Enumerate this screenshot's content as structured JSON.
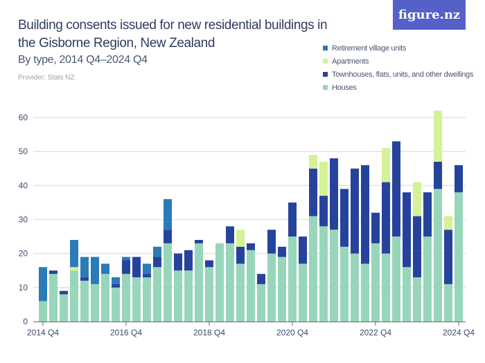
{
  "header": {
    "title": "Building consents issued for new residential buildings in the Gisborne Region, New Zealand",
    "subtitle": "By type, 2014 Q4–2024 Q4",
    "provider": "Provider: Stats NZ",
    "logo": "figure.nz"
  },
  "chart_data": {
    "type": "bar",
    "stacked": true,
    "title": "Building consents issued for new residential buildings in the Gisborne Region, New Zealand",
    "subtitle": "By type, 2014 Q4–2024 Q4",
    "xlabel": "",
    "ylabel": "",
    "ylim": [
      0,
      60
    ],
    "yticks": [
      0,
      10,
      20,
      30,
      40,
      50,
      60
    ],
    "grid": true,
    "legend_position": "top-right",
    "xtick_labels": [
      {
        "index": 0,
        "label": "2014 Q4"
      },
      {
        "index": 8,
        "label": "2016 Q4"
      },
      {
        "index": 16,
        "label": "2018 Q4"
      },
      {
        "index": 24,
        "label": "2020 Q4"
      },
      {
        "index": 32,
        "label": "2022 Q4"
      },
      {
        "index": 40,
        "label": "2024 Q4"
      }
    ],
    "categories": [
      "2014 Q4",
      "2015 Q1",
      "2015 Q2",
      "2015 Q3",
      "2015 Q4",
      "2016 Q1",
      "2016 Q2",
      "2016 Q3",
      "2016 Q4",
      "2017 Q1",
      "2017 Q2",
      "2017 Q3",
      "2017 Q4",
      "2018 Q1",
      "2018 Q2",
      "2018 Q3",
      "2018 Q4",
      "2019 Q1",
      "2019 Q2",
      "2019 Q3",
      "2019 Q4",
      "2020 Q1",
      "2020 Q2",
      "2020 Q3",
      "2020 Q4",
      "2021 Q1",
      "2021 Q2",
      "2021 Q3",
      "2021 Q4",
      "2022 Q1",
      "2022 Q2",
      "2022 Q3",
      "2022 Q4",
      "2023 Q1",
      "2023 Q2",
      "2023 Q3",
      "2023 Q4",
      "2024 Q1",
      "2024 Q2",
      "2024 Q3",
      "2024 Q4"
    ],
    "series": [
      {
        "name": "Houses",
        "color": "#98d6bb",
        "values": [
          6,
          14,
          8,
          15,
          12,
          11,
          14,
          10,
          14,
          13,
          13,
          16,
          23,
          15,
          15,
          23,
          16,
          23,
          23,
          17,
          21,
          11,
          20,
          19,
          25,
          17,
          31,
          28,
          27,
          22,
          20,
          17,
          23,
          20,
          25,
          16,
          13,
          25,
          39,
          11,
          38
        ]
      },
      {
        "name": "Townhouses, flats, units, and other dwellings",
        "color": "#26439c",
        "values": [
          0,
          1,
          1,
          0,
          1,
          0,
          0,
          1,
          4,
          6,
          1,
          3,
          4,
          5,
          6,
          1,
          2,
          0,
          5,
          5,
          2,
          3,
          7,
          3,
          10,
          8,
          14,
          9,
          21,
          17,
          25,
          29,
          9,
          21,
          28,
          22,
          18,
          13,
          8,
          16,
          8
        ]
      },
      {
        "name": "Apartments",
        "color": "#d4f296",
        "values": [
          0,
          0,
          0,
          1,
          0,
          0,
          0,
          0,
          0,
          0,
          0,
          0,
          0,
          0,
          0,
          0,
          0,
          0,
          0,
          5,
          0,
          0,
          0,
          0,
          0,
          0,
          4,
          10,
          0,
          0,
          0,
          0,
          0,
          10,
          0,
          0,
          10,
          0,
          15,
          4,
          0
        ]
      },
      {
        "name": "Retirement village units",
        "color": "#2a7bb8",
        "values": [
          10,
          0,
          0,
          8,
          6,
          8,
          3,
          2,
          1,
          0,
          3,
          3,
          9,
          0,
          0,
          0,
          0,
          0,
          0,
          0,
          0,
          0,
          0,
          0,
          0,
          0,
          0,
          0,
          0,
          0,
          0,
          0,
          0,
          0,
          0,
          0,
          0,
          0,
          0,
          0,
          0
        ]
      }
    ],
    "legend": [
      "Retirement village units",
      "Apartments",
      "Townhouses, flats, units, and other dwellings",
      "Houses"
    ]
  }
}
